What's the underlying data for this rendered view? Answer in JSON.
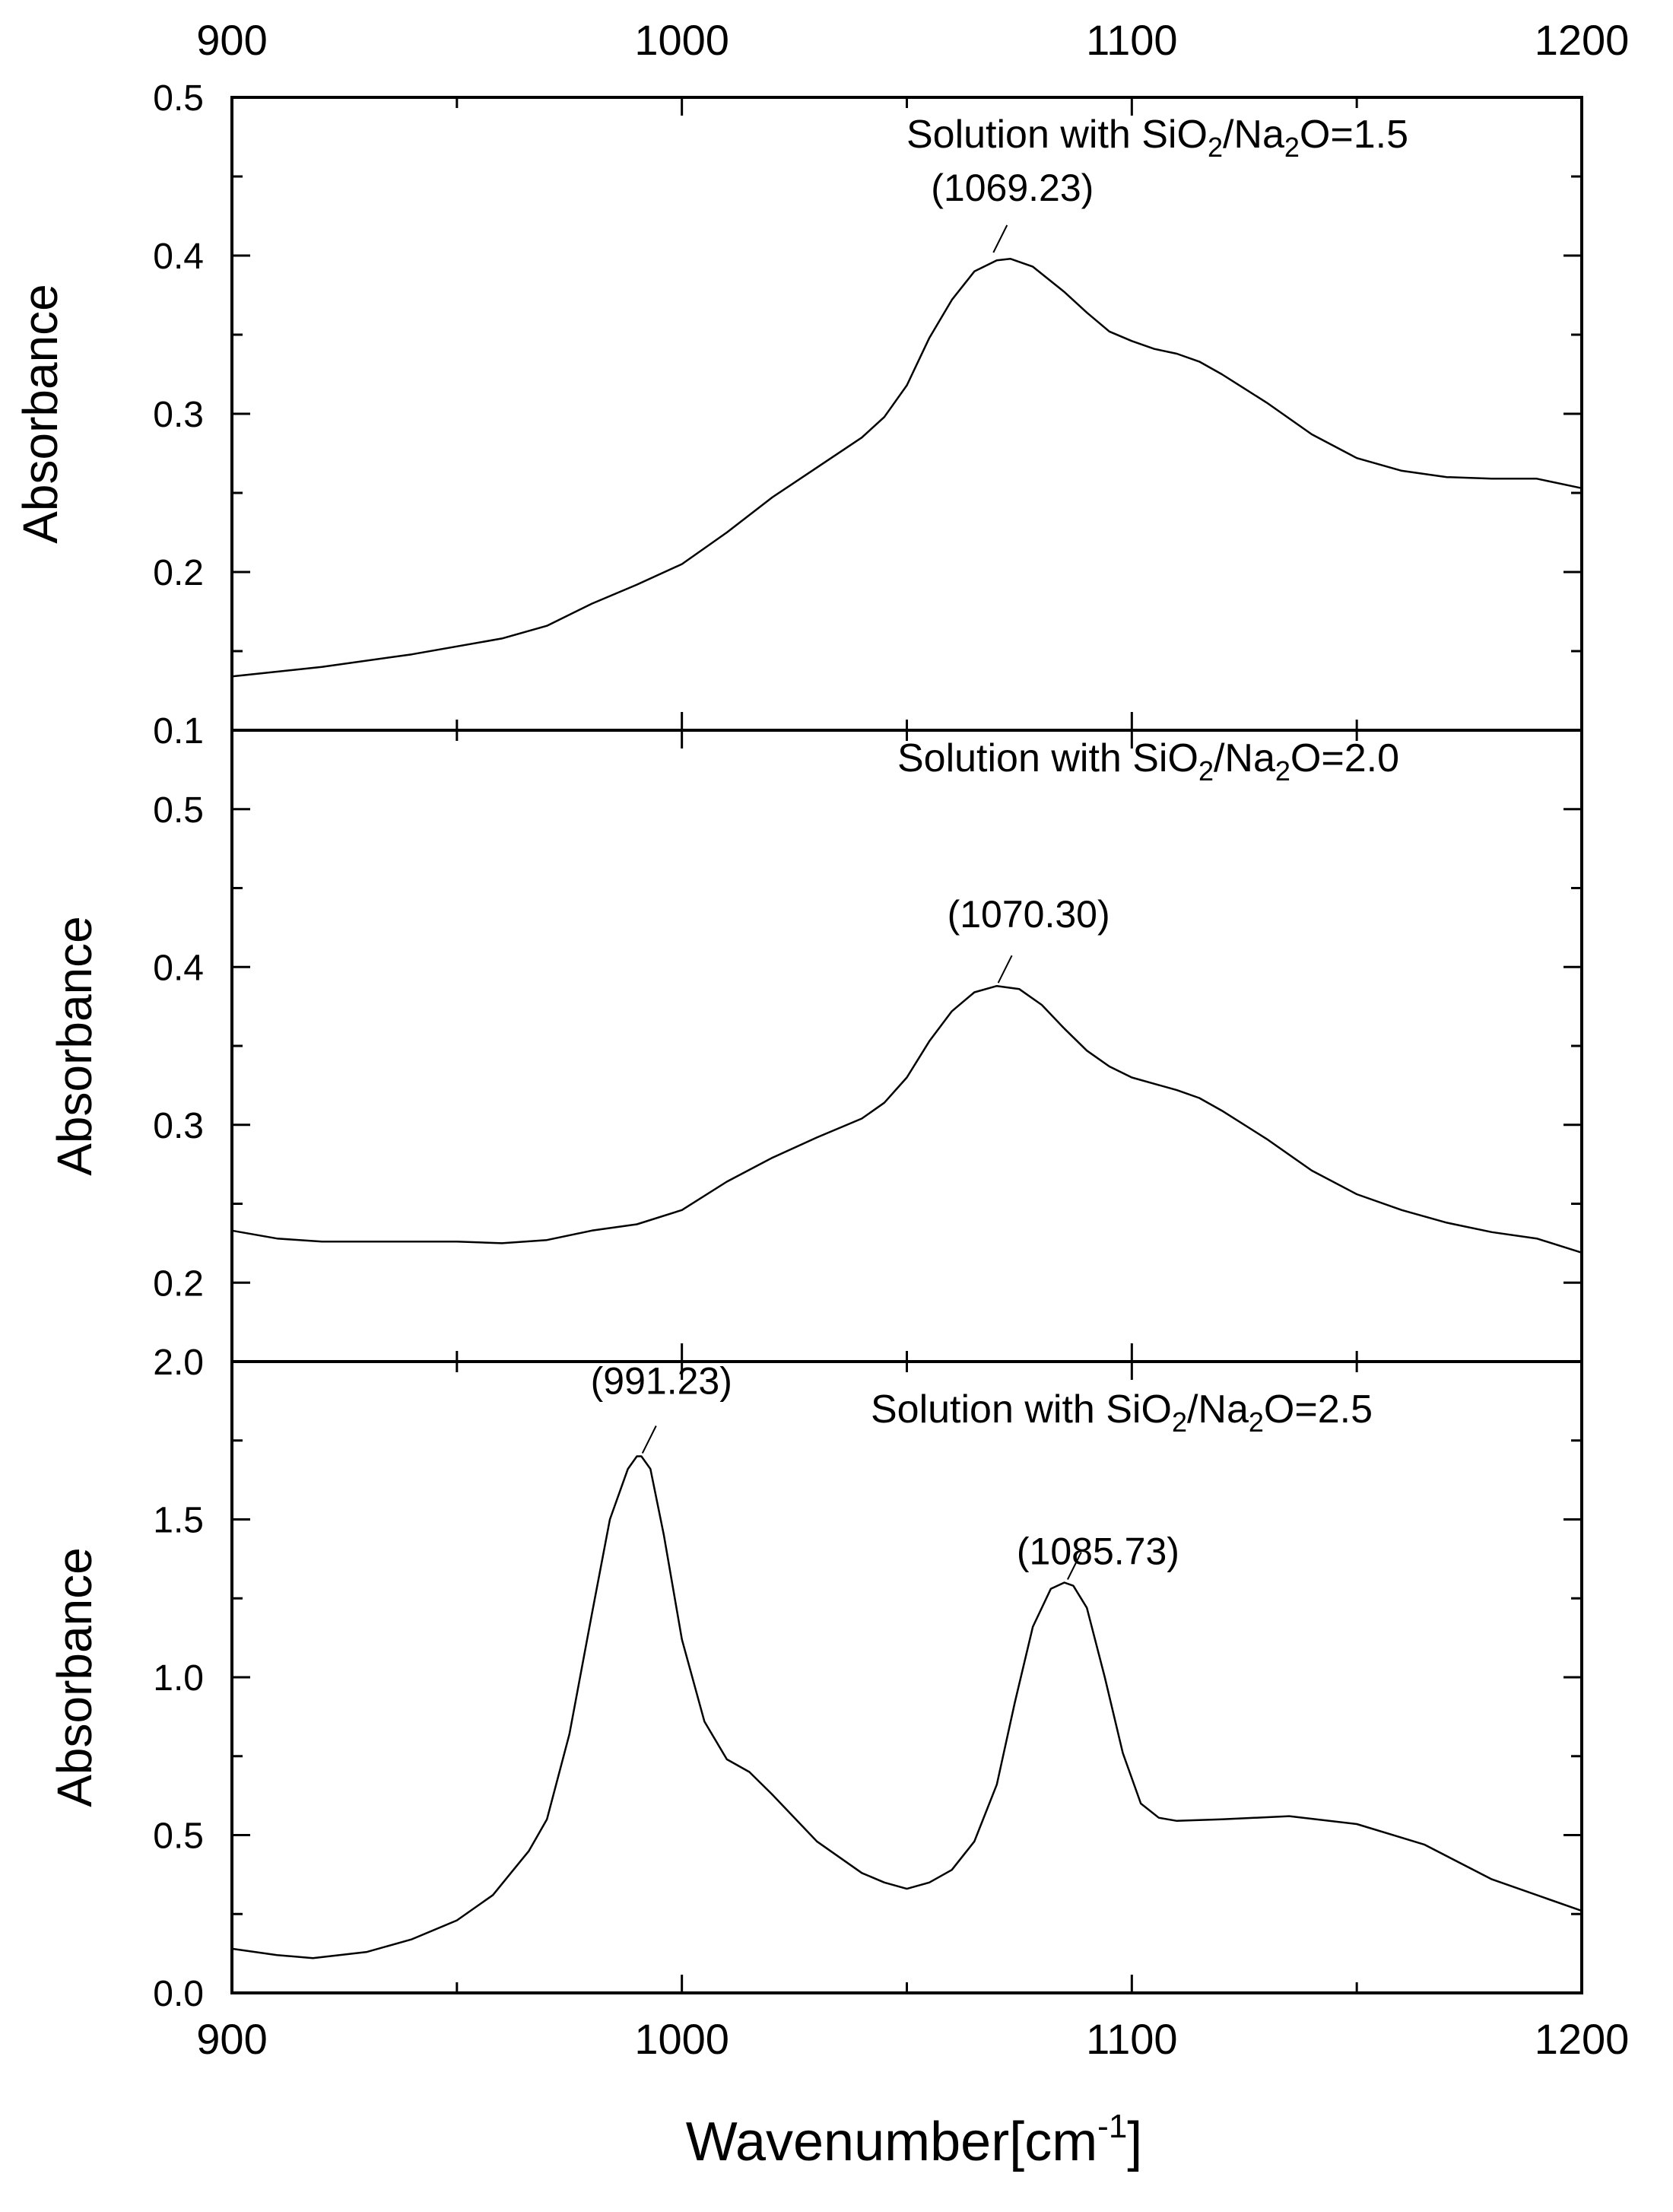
{
  "chart_data": {
    "type": "line",
    "x_axis": {
      "label": "Wavenumber[cm",
      "label_superscript": "-1",
      "label_suffix": "]",
      "range": [
        900,
        1200
      ],
      "ticks": [
        "900",
        "1000",
        "1100",
        "1200"
      ],
      "tick_values": [
        900,
        1000,
        1100,
        1200
      ]
    },
    "panels": [
      {
        "id": "sr15",
        "title_prefix": "Solution with SiO",
        "title_sub1": "2",
        "title_mid": "/Na",
        "title_sub2": "2",
        "title_suffix": "O=1.5",
        "ylabel": "Absorbance",
        "ylim": [
          0.1,
          0.5
        ],
        "y_ticks": [
          "0.1",
          "0.2",
          "0.3",
          "0.4",
          "0.5"
        ],
        "y_tick_values": [
          0.1,
          0.2,
          0.3,
          0.4,
          0.5
        ],
        "peaks": [
          {
            "x": 1069.23,
            "y": 0.4,
            "label": "(1069.23)"
          }
        ],
        "series": [
          {
            "name": "SiO2/Na2O=1.5",
            "x": [
              900,
              920,
              940,
              960,
              970,
              980,
              990,
              1000,
              1010,
              1020,
              1030,
              1040,
              1045,
              1050,
              1055,
              1060,
              1065,
              1070,
              1073,
              1078,
              1085,
              1090,
              1095,
              1100,
              1105,
              1110,
              1115,
              1120,
              1130,
              1140,
              1150,
              1160,
              1170,
              1180,
              1190,
              1200
            ],
            "y": [
              0.134,
              0.14,
              0.148,
              0.158,
              0.166,
              0.18,
              0.192,
              0.205,
              0.225,
              0.247,
              0.266,
              0.285,
              0.298,
              0.318,
              0.348,
              0.372,
              0.39,
              0.397,
              0.398,
              0.393,
              0.377,
              0.364,
              0.352,
              0.346,
              0.341,
              0.338,
              0.333,
              0.325,
              0.307,
              0.287,
              0.272,
              0.264,
              0.26,
              0.259,
              0.259,
              0.253
            ]
          }
        ]
      },
      {
        "id": "sr20",
        "title_prefix": "Solution with SiO",
        "title_sub1": "2",
        "title_mid": "/Na",
        "title_sub2": "2",
        "title_suffix": "O=2.0",
        "ylabel": "Absorbance",
        "ylim": [
          0.15,
          0.55
        ],
        "y_ticks": [
          "0.2",
          "0.3",
          "0.4",
          "0.5"
        ],
        "y_tick_values": [
          0.2,
          0.3,
          0.4,
          0.5
        ],
        "peaks": [
          {
            "x": 1070.3,
            "y": 0.388,
            "label": "(1070.30)"
          }
        ],
        "series": [
          {
            "name": "SiO2/Na2O=2.0",
            "x": [
              900,
              910,
              920,
              930,
              940,
              950,
              960,
              970,
              980,
              990,
              1000,
              1010,
              1020,
              1030,
              1040,
              1045,
              1050,
              1055,
              1060,
              1065,
              1070,
              1075,
              1080,
              1085,
              1090,
              1095,
              1100,
              1105,
              1110,
              1115,
              1120,
              1130,
              1140,
              1150,
              1160,
              1170,
              1180,
              1190,
              1200
            ],
            "y": [
              0.233,
              0.228,
              0.226,
              0.226,
              0.226,
              0.226,
              0.225,
              0.227,
              0.233,
              0.237,
              0.246,
              0.264,
              0.279,
              0.292,
              0.304,
              0.314,
              0.33,
              0.353,
              0.372,
              0.384,
              0.388,
              0.386,
              0.376,
              0.361,
              0.347,
              0.337,
              0.33,
              0.326,
              0.322,
              0.317,
              0.309,
              0.291,
              0.271,
              0.256,
              0.246,
              0.238,
              0.232,
              0.228,
              0.219
            ]
          }
        ]
      },
      {
        "id": "sr25",
        "title_prefix": "Solution with SiO",
        "title_sub1": "2",
        "title_mid": "/Na",
        "title_sub2": "2",
        "title_suffix": "O=2.5",
        "ylabel": "Absorbance",
        "ylim": [
          0.0,
          2.0
        ],
        "y_ticks": [
          "0.0",
          "0.5",
          "1.0",
          "1.5",
          "2.0"
        ],
        "y_tick_values": [
          0.0,
          0.5,
          1.0,
          1.5,
          2.0
        ],
        "peaks": [
          {
            "x": 991.23,
            "y": 1.7,
            "label": "(991.23)"
          },
          {
            "x": 1085.73,
            "y": 1.3,
            "label": "(1085.73)"
          }
        ],
        "series": [
          {
            "name": "SiO2/Na2O=2.5",
            "x": [
              900,
              910,
              918,
              930,
              940,
              950,
              958,
              962,
              966,
              970,
              975,
              980,
              984,
              988,
              990,
              991,
              993,
              996,
              1000,
              1005,
              1010,
              1015,
              1020,
              1030,
              1040,
              1045,
              1050,
              1055,
              1060,
              1065,
              1070,
              1074,
              1078,
              1082,
              1085,
              1087,
              1090,
              1094,
              1098,
              1102,
              1106,
              1110,
              1120,
              1135,
              1150,
              1165,
              1180,
              1200
            ],
            "y": [
              0.14,
              0.12,
              0.11,
              0.13,
              0.17,
              0.23,
              0.31,
              0.38,
              0.45,
              0.55,
              0.82,
              1.2,
              1.5,
              1.66,
              1.7,
              1.7,
              1.66,
              1.45,
              1.12,
              0.86,
              0.74,
              0.7,
              0.63,
              0.48,
              0.38,
              0.35,
              0.33,
              0.35,
              0.39,
              0.48,
              0.66,
              0.92,
              1.16,
              1.28,
              1.3,
              1.29,
              1.22,
              1.0,
              0.76,
              0.6,
              0.555,
              0.545,
              0.55,
              0.56,
              0.535,
              0.47,
              0.36,
              0.26
            ]
          }
        ]
      }
    ]
  }
}
